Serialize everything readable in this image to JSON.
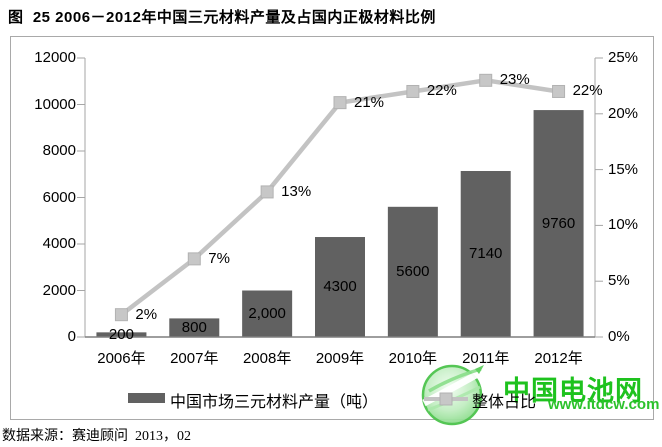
{
  "page": {
    "title": "图  25 2006－2012年中国三元材料产量及占国内正极材料比例",
    "source": "数据来源：赛迪顾问  2013，02"
  },
  "watermark": {
    "name": "中国电池网",
    "url": "www.itdcw.com",
    "name_color": "#1ec21e",
    "url_color": "#2cc22c"
  },
  "colors": {
    "bar": "#616161",
    "line": "#c3c3c3",
    "marker_fill": "#c7c7c7",
    "marker_stroke": "#b2b2b2",
    "axis": "#a6a6a6",
    "baseline": "#7f7f7f",
    "frame_border": "#a9a9a9",
    "label_text": "#000000"
  },
  "chart_data": {
    "type": "bar",
    "combo": "bar+line",
    "title": "图  25 2006－2012年中国三元材料产量及占国内正极材料比例",
    "categories": [
      "2006年",
      "2007年",
      "2008年",
      "2009年",
      "2010年",
      "2011年",
      "2012年"
    ],
    "series": [
      {
        "name": "中国市场三元材料产量（吨）",
        "type": "bar",
        "axis": "left",
        "values": [
          200,
          800,
          2000,
          4300,
          5600,
          7140,
          9760
        ],
        "labels": [
          "200",
          "800",
          "2,000",
          "4300",
          "5600",
          "7140",
          "9760"
        ]
      },
      {
        "name": "整体占比",
        "type": "line",
        "axis": "right",
        "values": [
          2,
          7,
          13,
          21,
          22,
          23,
          22
        ],
        "labels": [
          "2%",
          "7%",
          "13%",
          "21%",
          "22%",
          "23%",
          "22%"
        ]
      }
    ],
    "left_axis": {
      "min": 0,
      "max": 12000,
      "step": 2000,
      "ticks": [
        "0",
        "2000",
        "4000",
        "6000",
        "8000",
        "10000",
        "12000"
      ]
    },
    "right_axis": {
      "min": 0,
      "max": 25,
      "step": 5,
      "ticks": [
        "0%",
        "5%",
        "10%",
        "15%",
        "20%",
        "25%"
      ]
    },
    "xlabel": "",
    "ylabel": "",
    "grid": false,
    "legend_position": "bottom"
  }
}
